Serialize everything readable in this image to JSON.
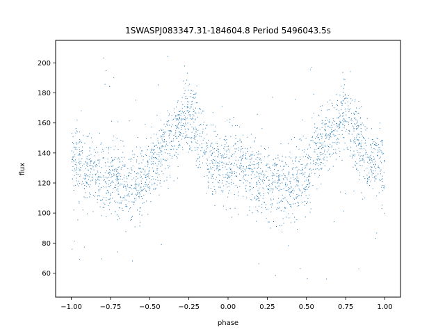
{
  "chart_data": {
    "type": "scatter",
    "title": "1SWASPJ083347.31-184604.8 Period 5496043.5s",
    "xlabel": "phase",
    "ylabel": "flux",
    "xlim": [
      -1.1,
      1.1
    ],
    "ylim": [
      44,
      215
    ],
    "x_ticks": [
      -1.0,
      -0.75,
      -0.5,
      -0.25,
      0.0,
      0.25,
      0.5,
      0.75,
      1.0
    ],
    "x_tick_labels": [
      "−1.00",
      "−0.75",
      "−0.50",
      "−0.25",
      "0.00",
      "0.25",
      "0.50",
      "0.75",
      "1.00"
    ],
    "y_ticks": [
      60,
      80,
      100,
      120,
      140,
      160,
      180,
      200
    ],
    "y_tick_labels": [
      "60",
      "80",
      "100",
      "120",
      "140",
      "160",
      "180",
      "200"
    ],
    "grid": false,
    "legend": "none",
    "point_color": "#1f77b4",
    "series": [
      {
        "phase_range": [
          -1.0,
          1.0
        ],
        "folded_period_in_phase": 1.0,
        "flux_profile_over_one_cycle": {
          "phase": [
            0.0,
            0.05,
            0.1,
            0.15,
            0.2,
            0.25,
            0.3,
            0.35,
            0.4,
            0.45,
            0.5,
            0.55,
            0.6,
            0.65,
            0.7,
            0.75,
            0.8,
            0.85,
            0.9,
            0.95,
            1.0
          ],
          "flux": [
            133,
            134,
            128,
            126,
            122,
            124,
            122,
            119,
            118,
            122,
            126,
            138,
            145,
            152,
            160,
            165,
            155,
            140,
            135,
            133,
            133
          ]
        },
        "typical_scatter": 12,
        "flux_range": [
          52,
          206
        ]
      }
    ]
  }
}
